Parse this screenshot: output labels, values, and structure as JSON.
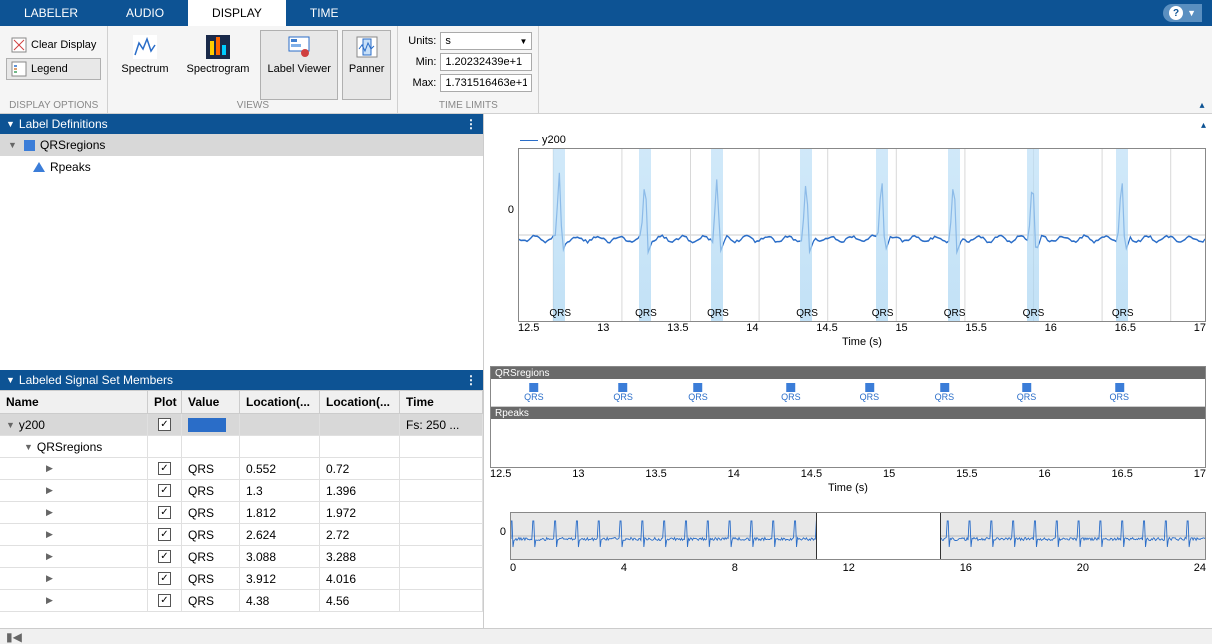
{
  "tabs": [
    "LABELER",
    "AUDIO",
    "DISPLAY",
    "TIME"
  ],
  "active_tab": "DISPLAY",
  "toolstrip": {
    "display_options": {
      "group_label": "DISPLAY OPTIONS",
      "clear": "Clear Display",
      "legend": "Legend"
    },
    "views": {
      "group_label": "VIEWS",
      "spectrum": "Spectrum",
      "spectrogram": "Spectrogram",
      "label_viewer": "Label Viewer",
      "panner": "Panner"
    },
    "time_limits": {
      "group_label": "TIME LIMITS",
      "units_label": "Units:",
      "units_value": "s",
      "min_label": "Min:",
      "min_value": "1.20232439e+1",
      "max_label": "Max:",
      "max_value": "1.731516463e+1"
    }
  },
  "label_defs": {
    "title": "Label Definitions",
    "items": [
      {
        "name": "QRSregions",
        "icon": "square",
        "selected": true
      },
      {
        "name": "Rpeaks",
        "icon": "triangle",
        "selected": false
      }
    ]
  },
  "members": {
    "title": "Labeled Signal Set Members",
    "columns": [
      "Name",
      "Plot",
      "Value",
      "Location(...",
      "Location(...",
      "Time"
    ],
    "root": {
      "name": "y200",
      "plot": true,
      "time": "Fs: 250 ..."
    },
    "child": {
      "name": "QRSregions"
    },
    "rows": [
      {
        "value": "QRS",
        "loc1": "0.552",
        "loc2": "0.72"
      },
      {
        "value": "QRS",
        "loc1": "1.3",
        "loc2": "1.396"
      },
      {
        "value": "QRS",
        "loc1": "1.812",
        "loc2": "1.972"
      },
      {
        "value": "QRS",
        "loc1": "2.624",
        "loc2": "2.72"
      },
      {
        "value": "QRS",
        "loc1": "3.088",
        "loc2": "3.288"
      },
      {
        "value": "QRS",
        "loc1": "3.912",
        "loc2": "4.016"
      },
      {
        "value": "QRS",
        "loc1": "4.38",
        "loc2": "4.56"
      }
    ]
  },
  "chart": {
    "legend_name": "y200",
    "y_tick": "0",
    "xlabel": "Time (s)",
    "xticks": [
      "12.5",
      "13",
      "13.5",
      "14",
      "14.5",
      "15",
      "15.5",
      "16",
      "16.5",
      "17"
    ],
    "qrs_positions_pct": [
      5,
      17.5,
      28,
      41,
      52,
      62.5,
      74,
      87
    ],
    "qrs_label": "QRS",
    "signal_color": "#2a6dc8",
    "band_color": "#a8d4f2",
    "grid_color": "#d8d8d8"
  },
  "region_panel": {
    "bar1": "QRSregions",
    "bar2": "Rpeaks",
    "marker_label": "QRS",
    "marker_positions_pct": [
      5,
      17.5,
      28,
      41,
      52,
      62.5,
      74,
      87
    ],
    "xticks": [
      "12.5",
      "13",
      "13.5",
      "14",
      "14.5",
      "15",
      "15.5",
      "16",
      "16.5",
      "17"
    ],
    "xlabel": "Time (s)"
  },
  "panner": {
    "y_tick": "0",
    "xticks": [
      "0",
      "4",
      "8",
      "12",
      "16",
      "20",
      "24"
    ],
    "window_left_pct": 44,
    "window_width_pct": 18,
    "signal_color": "#2a6dc8"
  }
}
